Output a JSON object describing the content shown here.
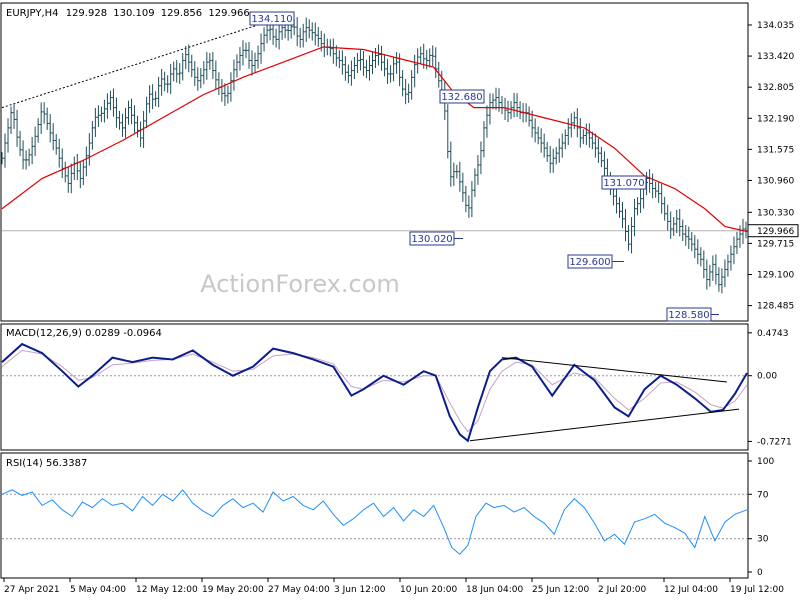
{
  "header": {
    "symbol": "EURJPY,H4",
    "open": "129.928",
    "high": "130.109",
    "low": "129.856",
    "close": "129.966"
  },
  "watermark": "ActionForex.com",
  "colors": {
    "background": "#ffffff",
    "bar": "#1f4e5a",
    "ma": "#e00000",
    "macd_main": "#0b1f8c",
    "macd_signal": "#c8a0c8",
    "rsi": "#1e90ff",
    "annotation_border": "#2b3990",
    "annotation_text": "#2b3990",
    "trend": "#000000",
    "grid": "#c8c8c8"
  },
  "chart_data": [
    {
      "type": "ohlc_bar",
      "title": "",
      "ylim": [
        128.2,
        134.45
      ],
      "ticks": [
        "134.035",
        "133.420",
        "132.805",
        "132.190",
        "131.575",
        "130.960",
        "130.330",
        "129.715",
        "129.100",
        "128.485"
      ],
      "current_price": "129.966",
      "x_dates": [
        "27 Apr 2021",
        "5 May 04:00",
        "12 May 12:00",
        "19 May 20:00",
        "27 May 04:00",
        "3 Jun 12:00",
        "10 Jun 20:00",
        "18 Jun 04:00",
        "25 Jun 12:00",
        "2 Jul 20:00",
        "12 Jul 04:00",
        "19 Jul 12:00"
      ],
      "annotations": [
        {
          "label": "134.110",
          "value": 134.11
        },
        {
          "label": "132.680",
          "value": 132.68
        },
        {
          "label": "130.020",
          "value": 130.02
        },
        {
          "label": "131.070",
          "value": 131.07
        },
        {
          "label": "129.600",
          "value": 129.6
        },
        {
          "label": "128.580",
          "value": 128.58
        }
      ],
      "price_path": [
        [
          0,
          131.4
        ],
        [
          6,
          132.0
        ],
        [
          10,
          132.4
        ],
        [
          16,
          131.7
        ],
        [
          22,
          131.3
        ],
        [
          28,
          131.5
        ],
        [
          34,
          131.9
        ],
        [
          40,
          132.4
        ],
        [
          48,
          131.9
        ],
        [
          54,
          131.6
        ],
        [
          60,
          131.2
        ],
        [
          66,
          130.9
        ],
        [
          72,
          131.3
        ],
        [
          78,
          131.0
        ],
        [
          86,
          131.6
        ],
        [
          92,
          132.2
        ],
        [
          100,
          132.3
        ],
        [
          108,
          132.6
        ],
        [
          114,
          132.2
        ],
        [
          120,
          132.0
        ],
        [
          126,
          132.4
        ],
        [
          132,
          132.1
        ],
        [
          138,
          131.8
        ],
        [
          146,
          132.7
        ],
        [
          152,
          132.5
        ],
        [
          158,
          133.0
        ],
        [
          164,
          132.8
        ],
        [
          170,
          133.2
        ],
        [
          176,
          133.0
        ],
        [
          182,
          133.5
        ],
        [
          188,
          133.2
        ],
        [
          194,
          132.9
        ],
        [
          200,
          133.1
        ],
        [
          206,
          133.4
        ],
        [
          212,
          133.0
        ],
        [
          218,
          132.7
        ],
        [
          224,
          132.6
        ],
        [
          230,
          133.1
        ],
        [
          236,
          133.4
        ],
        [
          242,
          133.6
        ],
        [
          248,
          133.2
        ],
        [
          254,
          133.4
        ],
        [
          260,
          133.8
        ],
        [
          266,
          134.0
        ],
        [
          272,
          133.7
        ],
        [
          278,
          134.0
        ],
        [
          284,
          133.9
        ],
        [
          290,
          134.05
        ],
        [
          296,
          133.7
        ],
        [
          302,
          134.0
        ],
        [
          308,
          133.9
        ],
        [
          314,
          133.8
        ],
        [
          320,
          133.6
        ],
        [
          326,
          133.6
        ],
        [
          332,
          133.4
        ],
        [
          338,
          133.3
        ],
        [
          344,
          133.0
        ],
        [
          350,
          133.2
        ],
        [
          356,
          133.4
        ],
        [
          362,
          133.1
        ],
        [
          368,
          133.3
        ],
        [
          374,
          133.5
        ],
        [
          380,
          133.2
        ],
        [
          386,
          133.0
        ],
        [
          392,
          133.4
        ],
        [
          398,
          132.8
        ],
        [
          404,
          132.6
        ],
        [
          410,
          133.2
        ],
        [
          416,
          133.5
        ],
        [
          422,
          133.3
        ],
        [
          428,
          133.5
        ],
        [
          434,
          133.0
        ],
        [
          440,
          132.6
        ],
        [
          446,
          131.0
        ],
        [
          452,
          131.2
        ],
        [
          458,
          130.8
        ],
        [
          464,
          130.3
        ],
        [
          470,
          131.0
        ],
        [
          476,
          131.4
        ],
        [
          480,
          132.0
        ],
        [
          486,
          132.5
        ],
        [
          492,
          132.6
        ],
        [
          498,
          132.4
        ],
        [
          504,
          132.3
        ],
        [
          510,
          132.5
        ],
        [
          516,
          132.3
        ],
        [
          522,
          132.3
        ],
        [
          528,
          132.0
        ],
        [
          534,
          131.8
        ],
        [
          540,
          131.6
        ],
        [
          546,
          131.3
        ],
        [
          552,
          131.5
        ],
        [
          558,
          131.7
        ],
        [
          564,
          132.0
        ],
        [
          570,
          132.2
        ],
        [
          576,
          131.8
        ],
        [
          582,
          131.9
        ],
        [
          588,
          131.7
        ],
        [
          594,
          131.5
        ],
        [
          600,
          131.2
        ],
        [
          606,
          130.8
        ],
        [
          612,
          130.5
        ],
        [
          618,
          130.2
        ],
        [
          624,
          129.7
        ],
        [
          630,
          130.4
        ],
        [
          636,
          130.6
        ],
        [
          642,
          131.0
        ],
        [
          648,
          130.8
        ],
        [
          654,
          130.7
        ],
        [
          660,
          130.3
        ],
        [
          666,
          130.0
        ],
        [
          672,
          130.2
        ],
        [
          678,
          129.9
        ],
        [
          684,
          129.8
        ],
        [
          690,
          129.6
        ],
        [
          696,
          129.4
        ],
        [
          702,
          129.0
        ],
        [
          708,
          129.3
        ],
        [
          714,
          128.9
        ],
        [
          720,
          129.2
        ],
        [
          726,
          129.5
        ],
        [
          732,
          129.8
        ],
        [
          738,
          130.0
        ],
        [
          742,
          129.95
        ]
      ],
      "ma_path": [
        [
          0,
          130.4
        ],
        [
          40,
          131.0
        ],
        [
          80,
          131.35
        ],
        [
          120,
          131.75
        ],
        [
          160,
          132.2
        ],
        [
          200,
          132.65
        ],
        [
          240,
          133.0
        ],
        [
          280,
          133.3
        ],
        [
          320,
          133.6
        ],
        [
          360,
          133.55
        ],
        [
          400,
          133.35
        ],
        [
          430,
          133.2
        ],
        [
          450,
          132.7
        ],
        [
          470,
          132.4
        ],
        [
          500,
          132.4
        ],
        [
          540,
          132.2
        ],
        [
          580,
          132.0
        ],
        [
          610,
          131.6
        ],
        [
          640,
          131.05
        ],
        [
          670,
          130.8
        ],
        [
          700,
          130.4
        ],
        [
          720,
          130.05
        ],
        [
          742,
          129.95
        ]
      ],
      "trend_line": [
        [
          0,
          132.4
        ],
        [
          268,
          134.12
        ]
      ]
    },
    {
      "type": "line",
      "title": "MACD(12,26,9) 0.0289 -0.0964",
      "ylim": [
        -0.8,
        0.55
      ],
      "ticks": [
        "0.4743",
        "0.00",
        "-0.7271"
      ],
      "macd": [
        [
          0,
          0.15
        ],
        [
          20,
          0.35
        ],
        [
          40,
          0.25
        ],
        [
          60,
          0.05
        ],
        [
          76,
          -0.12
        ],
        [
          90,
          0.0
        ],
        [
          110,
          0.2
        ],
        [
          130,
          0.15
        ],
        [
          150,
          0.2
        ],
        [
          170,
          0.18
        ],
        [
          190,
          0.28
        ],
        [
          210,
          0.12
        ],
        [
          230,
          0.0
        ],
        [
          250,
          0.1
        ],
        [
          270,
          0.3
        ],
        [
          290,
          0.25
        ],
        [
          310,
          0.18
        ],
        [
          330,
          0.1
        ],
        [
          348,
          -0.22
        ],
        [
          360,
          -0.15
        ],
        [
          380,
          0.0
        ],
        [
          400,
          -0.1
        ],
        [
          420,
          0.05
        ],
        [
          432,
          0.0
        ],
        [
          446,
          -0.45
        ],
        [
          456,
          -0.65
        ],
        [
          464,
          -0.72
        ],
        [
          474,
          -0.35
        ],
        [
          486,
          0.05
        ],
        [
          498,
          0.18
        ],
        [
          512,
          0.2
        ],
        [
          528,
          0.1
        ],
        [
          548,
          -0.22
        ],
        [
          570,
          0.12
        ],
        [
          590,
          -0.05
        ],
        [
          610,
          -0.35
        ],
        [
          624,
          -0.45
        ],
        [
          640,
          -0.15
        ],
        [
          656,
          0.0
        ],
        [
          672,
          -0.1
        ],
        [
          690,
          -0.25
        ],
        [
          706,
          -0.4
        ],
        [
          718,
          -0.38
        ],
        [
          730,
          -0.2
        ],
        [
          742,
          0.03
        ]
      ],
      "signal": [
        [
          0,
          0.1
        ],
        [
          20,
          0.28
        ],
        [
          40,
          0.24
        ],
        [
          60,
          0.1
        ],
        [
          76,
          -0.05
        ],
        [
          90,
          -0.02
        ],
        [
          110,
          0.12
        ],
        [
          130,
          0.14
        ],
        [
          150,
          0.17
        ],
        [
          170,
          0.18
        ],
        [
          190,
          0.24
        ],
        [
          210,
          0.15
        ],
        [
          230,
          0.05
        ],
        [
          250,
          0.07
        ],
        [
          270,
          0.22
        ],
        [
          290,
          0.24
        ],
        [
          310,
          0.2
        ],
        [
          330,
          0.13
        ],
        [
          348,
          -0.12
        ],
        [
          360,
          -0.15
        ],
        [
          380,
          -0.05
        ],
        [
          400,
          -0.07
        ],
        [
          420,
          0.0
        ],
        [
          432,
          0.0
        ],
        [
          446,
          -0.3
        ],
        [
          456,
          -0.5
        ],
        [
          464,
          -0.62
        ],
        [
          474,
          -0.5
        ],
        [
          486,
          -0.15
        ],
        [
          498,
          0.05
        ],
        [
          512,
          0.15
        ],
        [
          528,
          0.12
        ],
        [
          548,
          -0.1
        ],
        [
          570,
          0.03
        ],
        [
          590,
          -0.02
        ],
        [
          610,
          -0.25
        ],
        [
          624,
          -0.38
        ],
        [
          640,
          -0.25
        ],
        [
          656,
          -0.08
        ],
        [
          672,
          -0.07
        ],
        [
          690,
          -0.18
        ],
        [
          706,
          -0.32
        ],
        [
          718,
          -0.36
        ],
        [
          730,
          -0.28
        ],
        [
          742,
          -0.1
        ]
      ],
      "trend_upper": [
        [
          498,
          0.2
        ],
        [
          722,
          -0.07
        ]
      ],
      "trend_lower": [
        [
          466,
          -0.72
        ],
        [
          734,
          -0.37
        ]
      ]
    },
    {
      "type": "line",
      "title": "RSI(14) 56.3387",
      "ylim": [
        0,
        100
      ],
      "ticks": [
        "100",
        "70",
        "30",
        "0"
      ],
      "rsi": [
        [
          0,
          70
        ],
        [
          10,
          74
        ],
        [
          20,
          69
        ],
        [
          30,
          72
        ],
        [
          40,
          60
        ],
        [
          50,
          65
        ],
        [
          60,
          56
        ],
        [
          70,
          50
        ],
        [
          80,
          63
        ],
        [
          90,
          58
        ],
        [
          100,
          66
        ],
        [
          110,
          60
        ],
        [
          120,
          62
        ],
        [
          130,
          55
        ],
        [
          140,
          68
        ],
        [
          150,
          60
        ],
        [
          160,
          70
        ],
        [
          170,
          64
        ],
        [
          180,
          74
        ],
        [
          190,
          62
        ],
        [
          200,
          55
        ],
        [
          210,
          50
        ],
        [
          220,
          60
        ],
        [
          230,
          66
        ],
        [
          240,
          58
        ],
        [
          250,
          62
        ],
        [
          260,
          54
        ],
        [
          270,
          72
        ],
        [
          280,
          64
        ],
        [
          290,
          68
        ],
        [
          300,
          60
        ],
        [
          310,
          56
        ],
        [
          320,
          64
        ],
        [
          330,
          52
        ],
        [
          340,
          42
        ],
        [
          350,
          48
        ],
        [
          360,
          56
        ],
        [
          370,
          62
        ],
        [
          380,
          50
        ],
        [
          390,
          58
        ],
        [
          400,
          46
        ],
        [
          410,
          56
        ],
        [
          420,
          50
        ],
        [
          430,
          60
        ],
        [
          440,
          40
        ],
        [
          448,
          22
        ],
        [
          456,
          16
        ],
        [
          464,
          24
        ],
        [
          472,
          50
        ],
        [
          482,
          62
        ],
        [
          490,
          58
        ],
        [
          500,
          60
        ],
        [
          510,
          54
        ],
        [
          520,
          58
        ],
        [
          530,
          50
        ],
        [
          540,
          44
        ],
        [
          550,
          34
        ],
        [
          560,
          56
        ],
        [
          570,
          66
        ],
        [
          580,
          58
        ],
        [
          590,
          44
        ],
        [
          600,
          28
        ],
        [
          610,
          34
        ],
        [
          620,
          25
        ],
        [
          630,
          45
        ],
        [
          640,
          48
        ],
        [
          650,
          52
        ],
        [
          660,
          44
        ],
        [
          670,
          40
        ],
        [
          680,
          35
        ],
        [
          690,
          22
        ],
        [
          700,
          50
        ],
        [
          710,
          28
        ],
        [
          720,
          45
        ],
        [
          730,
          52
        ],
        [
          742,
          56
        ]
      ]
    }
  ]
}
